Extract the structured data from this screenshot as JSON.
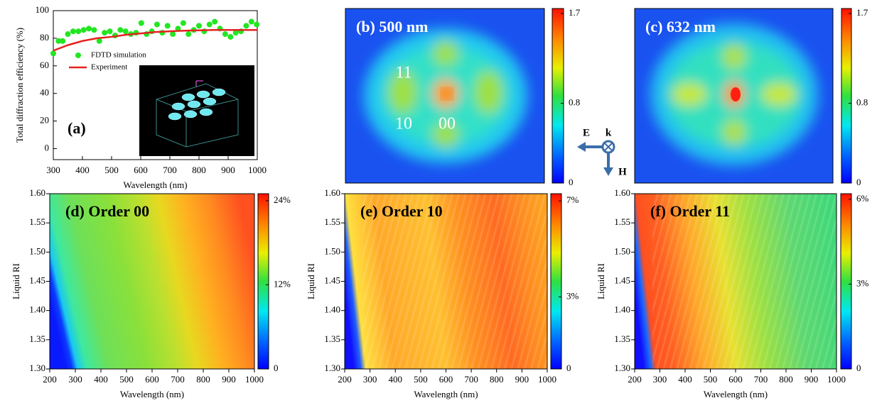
{
  "chart_data": [
    {
      "type": "scatter",
      "panel_label": "(a)",
      "xlabel": "Wavelength (nm)",
      "ylabel": "Total diffraction efficiency (%)",
      "xlim": [
        300,
        1000
      ],
      "ylim": [
        -8,
        100
      ],
      "xticks": [
        300,
        400,
        500,
        600,
        700,
        800,
        900,
        1000
      ],
      "yticks": [
        0,
        20,
        40,
        60,
        80,
        100
      ],
      "series": [
        {
          "name": "FDTD simulation",
          "kind": "scatter",
          "color": "#22e622",
          "x": [
            300,
            318,
            332,
            350,
            368,
            386,
            404,
            422,
            440,
            458,
            476,
            494,
            512,
            530,
            548,
            566,
            584,
            602,
            620,
            638,
            656,
            674,
            692,
            710,
            728,
            746,
            764,
            782,
            800,
            818,
            836,
            854,
            872,
            890,
            908,
            926,
            944,
            962,
            980,
            998
          ],
          "values": [
            69,
            78,
            78,
            83,
            85,
            85,
            86,
            87,
            86,
            78,
            84,
            85,
            82,
            86,
            85,
            83,
            84,
            91,
            83,
            85,
            90,
            84,
            89,
            83,
            87,
            91,
            83,
            86,
            89,
            85,
            90,
            92,
            87,
            83,
            81,
            84,
            85,
            89,
            92,
            90
          ]
        },
        {
          "name": "Experiment",
          "kind": "line",
          "color": "#e62020",
          "x": [
            300,
            350,
            400,
            450,
            500,
            550,
            600,
            650,
            700,
            750,
            800,
            850,
            900,
            950,
            1000
          ],
          "values": [
            71,
            75,
            78,
            80,
            81,
            82.5,
            83.5,
            84.5,
            85,
            85.5,
            85.7,
            86,
            86,
            86,
            86
          ]
        }
      ]
    },
    {
      "type": "heatmap",
      "title": "(b) 500 nm",
      "annotations": [
        "11",
        "10",
        "00"
      ],
      "clim": [
        0,
        1.75
      ],
      "cticks": [
        0,
        0.8,
        1.7
      ]
    },
    {
      "type": "heatmap",
      "title": "(c) 632 nm",
      "clim": [
        0,
        1.75
      ],
      "cticks": [
        0,
        0.8,
        1.7
      ]
    },
    {
      "type": "heatmap",
      "title": "(d) Order 00",
      "xlabel": "Wavelength (nm)",
      "ylabel": "Liquid RI",
      "xlim": [
        200,
        1000
      ],
      "xticks": [
        200,
        300,
        400,
        500,
        600,
        700,
        800,
        900,
        1000
      ],
      "ylim": [
        1.3,
        1.6
      ],
      "yticks": [
        {
          "value": 1.3,
          "label": "1.30"
        },
        1.35,
        {
          "value": 1.4,
          "label": "1.40"
        },
        1.45,
        {
          "value": 1.5,
          "label": "1.50"
        },
        1.55,
        {
          "value": 1.6,
          "label": "1.60"
        }
      ],
      "clim": [
        0,
        25
      ],
      "cticks": [
        0,
        {
          "value": 12,
          "label": "12%"
        },
        {
          "value": 24,
          "label": "24%"
        }
      ]
    },
    {
      "type": "heatmap",
      "title": "(e) Order 10",
      "xlabel": "Wavelength (nm)",
      "ylabel": "Liquid RI",
      "xlim": [
        200,
        1000
      ],
      "xticks": [
        200,
        300,
        400,
        500,
        600,
        700,
        800,
        900,
        1000
      ],
      "ylim": [
        1.3,
        1.6
      ],
      "yticks": [
        {
          "value": 1.3,
          "label": "1.30"
        },
        1.35,
        {
          "value": 1.4,
          "label": "1.40"
        },
        1.45,
        {
          "value": 1.5,
          "label": "1.50"
        },
        1.55,
        {
          "value": 1.6,
          "label": "1.60"
        }
      ],
      "clim": [
        0,
        7.3
      ],
      "cticks": [
        0,
        {
          "value": 3,
          "label": "3%"
        },
        {
          "value": 7,
          "label": "7%"
        }
      ]
    },
    {
      "type": "heatmap",
      "title": "(f) Order 11",
      "xlabel": "Wavelength (nm)",
      "ylabel": "Liquid RI",
      "xlim": [
        200,
        1000
      ],
      "xticks": [
        200,
        300,
        400,
        500,
        600,
        700,
        800,
        900,
        1000
      ],
      "ylim": [
        1.3,
        1.6
      ],
      "yticks": [
        {
          "value": 1.3,
          "label": "1.30"
        },
        1.35,
        {
          "value": 1.4,
          "label": "1.40"
        },
        1.45,
        {
          "value": 1.5,
          "label": "1.50"
        },
        1.55,
        {
          "value": 1.6,
          "label": "1.60"
        }
      ],
      "clim": [
        0,
        6.2
      ],
      "cticks": [
        0,
        {
          "value": 3,
          "label": "3%"
        },
        {
          "value": 6,
          "label": "6%"
        }
      ]
    }
  ],
  "polarization": {
    "E": "E",
    "k": "k",
    "H": "H"
  }
}
